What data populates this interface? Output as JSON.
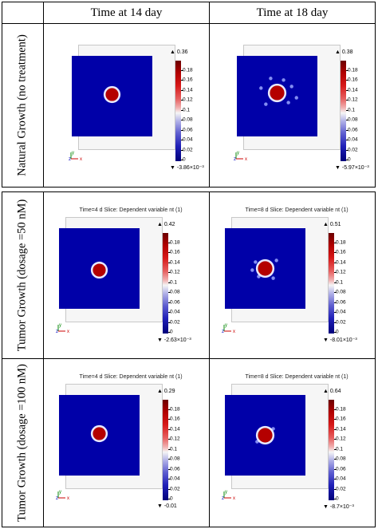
{
  "header": {
    "col1": "Time at 14 day",
    "col2": "Time at 18 day"
  },
  "rows": [
    {
      "label": "Natural Growth (no treatment)"
    },
    {
      "label": "Tumor  Growth (dosage =50 nM)"
    },
    {
      "label": "Tumor  Growth (dosage =100 nM)"
    }
  ],
  "panels": [
    {
      "caption": "",
      "max": "0.36",
      "min": "-3.86×10⁻³",
      "ticks": [
        "0.18",
        "0.16",
        "0.14",
        "0.12",
        "0.1",
        "0.08",
        "0.06",
        "0.04",
        "0.02",
        "0"
      ]
    },
    {
      "caption": "",
      "max": "0.38",
      "min": "-5.97×10⁻³",
      "ticks": [
        "0.18",
        "0.16",
        "0.14",
        "0.12",
        "0.1",
        "0.08",
        "0.06",
        "0.04",
        "0.02",
        "0"
      ]
    },
    {
      "caption": "Time=4 d   Slice: Dependent variable nt (1)",
      "max": "0.42",
      "min": "-2.63×10⁻³",
      "ticks": [
        "0.18",
        "0.16",
        "0.14",
        "0.12",
        "0.1",
        "0.08",
        "0.06",
        "0.04",
        "0.02",
        "0"
      ]
    },
    {
      "caption": "Time=8 d   Slice: Dependent variable nt (1)",
      "max": "0.51",
      "min": "-8.01×10⁻³",
      "ticks": [
        "0.18",
        "0.16",
        "0.14",
        "0.12",
        "0.1",
        "0.08",
        "0.06",
        "0.04",
        "0.02",
        "0"
      ]
    },
    {
      "caption": "Time=4 d   Slice: Dependent variable nt (1)",
      "max": "0.29",
      "min": "-0.01",
      "ticks": [
        "0.18",
        "0.16",
        "0.14",
        "0.12",
        "0.1",
        "0.08",
        "0.06",
        "0.04",
        "0.02",
        "0"
      ]
    },
    {
      "caption": "Time=8 d   Slice: Dependent variable nt (1)",
      "max": "0.64",
      "min": "-8.7×10⁻³",
      "ticks": [
        "0.18",
        "0.16",
        "0.14",
        "0.12",
        "0.1",
        "0.08",
        "0.06",
        "0.04",
        "0.02",
        "0"
      ]
    }
  ],
  "axis": {
    "y": "y",
    "z": "z",
    "x": "x"
  },
  "colors": {
    "background_field": "#0000a8",
    "tumor_core": "#b40000",
    "tumor_edge": "#e8e8ff"
  }
}
